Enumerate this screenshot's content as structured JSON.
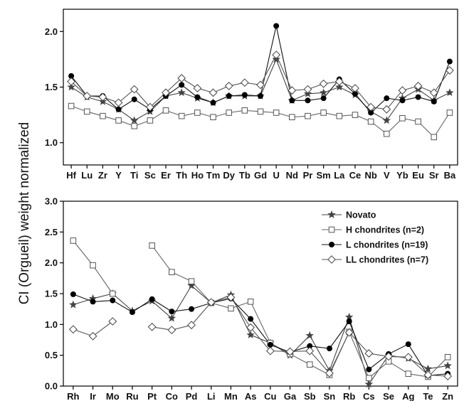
{
  "figure": {
    "ylabel": "CI (Orgueil) weight normalized"
  },
  "chart_data": [
    {
      "type": "line",
      "x_categories": [
        "Hf",
        "Lu",
        "Zr",
        "Y",
        "Ti",
        "Sc",
        "Er",
        "Th",
        "Ho",
        "Tm",
        "Dy",
        "Tb",
        "Gd",
        "U",
        "Nd",
        "Pr",
        "Sm",
        "La",
        "Ce",
        "Nb",
        "V",
        "Yb",
        "Eu",
        "Sr",
        "Ba"
      ],
      "ylim": [
        0.8,
        2.2
      ],
      "yticks": [
        "1.0",
        "1.5",
        "2.0"
      ],
      "ytick_values": [
        1.0,
        1.5,
        2.0
      ],
      "series": [
        {
          "name": "Novato",
          "marker": "star",
          "values": [
            1.5,
            1.41,
            1.37,
            1.3,
            1.2,
            1.28,
            1.42,
            1.45,
            1.4,
            1.36,
            1.42,
            1.42,
            1.42,
            1.75,
            1.38,
            1.44,
            1.45,
            1.5,
            1.43,
            1.28,
            1.2,
            1.4,
            1.48,
            1.38,
            1.45
          ]
        },
        {
          "name": "H chondrites (n=2)",
          "marker": "square",
          "values": [
            1.33,
            1.28,
            1.24,
            1.2,
            1.15,
            1.2,
            1.29,
            1.24,
            1.27,
            1.23,
            1.27,
            1.29,
            1.28,
            1.27,
            1.23,
            1.24,
            1.27,
            1.24,
            1.25,
            1.19,
            1.08,
            1.22,
            1.19,
            1.05,
            1.27
          ]
        },
        {
          "name": "L chondrites (n=19)",
          "marker": "circle",
          "values": [
            1.6,
            1.42,
            1.42,
            1.3,
            1.39,
            1.3,
            1.42,
            1.52,
            1.41,
            1.36,
            1.42,
            1.43,
            1.42,
            2.05,
            1.38,
            1.38,
            1.4,
            1.57,
            1.44,
            1.27,
            1.4,
            1.38,
            1.41,
            1.37,
            1.73
          ]
        },
        {
          "name": "LL chondrites (n=7)",
          "marker": "diamond",
          "values": [
            1.55,
            1.42,
            1.41,
            1.36,
            1.48,
            1.32,
            1.45,
            1.58,
            1.49,
            1.45,
            1.51,
            1.54,
            1.52,
            1.79,
            1.47,
            1.48,
            1.53,
            1.55,
            1.49,
            1.32,
            1.3,
            1.47,
            1.51,
            1.45,
            1.65
          ]
        }
      ]
    },
    {
      "type": "line",
      "x_categories": [
        "Rh",
        "Ir",
        "Mo",
        "Ru",
        "Pt",
        "Co",
        "Pd",
        "Li",
        "Mn",
        "As",
        "Cu",
        "Ga",
        "Sb",
        "Sn",
        "Rb",
        "Cs",
        "Se",
        "Ag",
        "Te",
        "Zn"
      ],
      "ylim": [
        0.0,
        3.0
      ],
      "yticks": [
        "0.0",
        "0.5",
        "1.0",
        "1.5",
        "2.0",
        "2.5",
        "3.0"
      ],
      "ytick_values": [
        0.0,
        0.5,
        1.0,
        1.5,
        2.0,
        2.5,
        3.0
      ],
      "legend_position": "top-right",
      "series": [
        {
          "name": "Novato",
          "marker": "star",
          "values": [
            1.32,
            1.42,
            1.5,
            1.22,
            1.38,
            1.1,
            1.63,
            1.35,
            1.48,
            0.83,
            0.7,
            0.5,
            0.82,
            0.25,
            1.12,
            0.03,
            0.5,
            0.45,
            0.28,
            0.33
          ]
        },
        {
          "name": "H chondrites (n=2)",
          "marker": "square",
          "values": [
            2.36,
            1.96,
            1.5,
            null,
            2.28,
            1.85,
            1.7,
            1.35,
            1.26,
            1.37,
            0.7,
            0.52,
            0.35,
            0.18,
            0.88,
            0.13,
            0.4,
            0.2,
            0.15,
            0.47
          ]
        },
        {
          "name": "L chondrites (n=19)",
          "marker": "circle",
          "values": [
            1.49,
            1.37,
            1.39,
            1.2,
            1.41,
            1.21,
            1.25,
            1.35,
            1.42,
            1.09,
            0.67,
            0.55,
            0.65,
            0.61,
            1.05,
            0.27,
            0.52,
            0.68,
            0.17,
            0.2
          ]
        },
        {
          "name": "LL chondrites (n=7)",
          "marker": "diamond",
          "values": [
            0.92,
            0.81,
            1.05,
            null,
            0.96,
            0.91,
            0.99,
            1.36,
            1.44,
            0.95,
            0.57,
            0.56,
            0.57,
            0.21,
            0.87,
            0.53,
            0.48,
            0.47,
            0.18,
            0.16
          ]
        }
      ]
    }
  ]
}
